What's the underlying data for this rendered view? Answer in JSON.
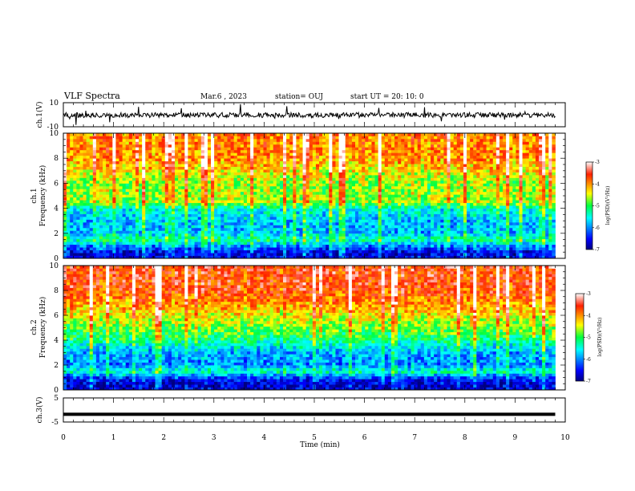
{
  "header": {
    "title": "VLF Spectra",
    "date": "Mar.6 , 2023",
    "station": "station= OUJ",
    "start_ut": "start UT = 20: 10: 0"
  },
  "colorbar": {
    "label": "log(PSD)(V²/Hz)",
    "ticks": [
      "-3",
      "-4",
      "-5",
      "-6",
      "-7"
    ]
  },
  "chart_data": [
    {
      "type": "line",
      "panel": "ch1-waveform",
      "ylabel": "ch.1(V)",
      "ylim": [
        -10,
        10
      ],
      "yticks": [
        "10",
        "-10"
      ],
      "x": [
        0,
        10
      ],
      "description_values": {
        "baseline": -0.3,
        "noise_amplitude": 3
      }
    },
    {
      "type": "heatmap",
      "panel": "ch1-spectrogram",
      "ylabel": "ch.1\nFrequency (kHz)",
      "ylim": [
        0,
        10
      ],
      "yticks": [
        "0",
        "2",
        "4",
        "6",
        "8",
        "10"
      ],
      "xlim": [
        0,
        9.8
      ],
      "zlim": [
        -7,
        -3
      ],
      "profile": [
        {
          "freq": 0.5,
          "log_psd": -6.6
        },
        {
          "freq": 1.0,
          "log_psd": -6.0
        },
        {
          "freq": 1.5,
          "log_psd": -5.2
        },
        {
          "freq": 2.0,
          "log_psd": -5.8
        },
        {
          "freq": 3.0,
          "log_psd": -5.8
        },
        {
          "freq": 4.0,
          "log_psd": -5.5
        },
        {
          "freq": 4.5,
          "log_psd": -4.6
        },
        {
          "freq": 6.0,
          "log_psd": -4.7
        },
        {
          "freq": 8.0,
          "log_psd": -4.0
        },
        {
          "freq": 10.0,
          "log_psd": -3.9
        }
      ]
    },
    {
      "type": "heatmap",
      "panel": "ch2-spectrogram",
      "ylabel": "ch.2\nFrequency (kHz)",
      "ylim": [
        0,
        10
      ],
      "yticks": [
        "0",
        "2",
        "4",
        "6",
        "8",
        "10"
      ],
      "xlim": [
        0,
        9.8
      ],
      "zlim": [
        -7,
        -3
      ],
      "profile": [
        {
          "freq": 0.5,
          "log_psd": -6.7
        },
        {
          "freq": 1.0,
          "log_psd": -6.3
        },
        {
          "freq": 1.5,
          "log_psd": -5.3
        },
        {
          "freq": 2.0,
          "log_psd": -6.0
        },
        {
          "freq": 3.0,
          "log_psd": -5.9
        },
        {
          "freq": 4.0,
          "log_psd": -5.2
        },
        {
          "freq": 5.0,
          "log_psd": -4.8
        },
        {
          "freq": 6.5,
          "log_psd": -4.2
        },
        {
          "freq": 8.0,
          "log_psd": -3.7
        },
        {
          "freq": 10.0,
          "log_psd": -3.6
        }
      ]
    },
    {
      "type": "line",
      "panel": "ch3-waveform",
      "ylabel": "ch.3(V)",
      "ylim": [
        -5,
        5
      ],
      "yticks": [
        "5",
        "-5"
      ],
      "x": [
        0,
        9.8
      ],
      "y": [
        -1.8,
        -1.8
      ]
    }
  ],
  "xaxis": {
    "label": "Time (min)",
    "ticks": [
      "0",
      "1",
      "2",
      "3",
      "4",
      "5",
      "6",
      "7",
      "8",
      "9",
      "10"
    ],
    "xlim": [
      0,
      10
    ]
  }
}
